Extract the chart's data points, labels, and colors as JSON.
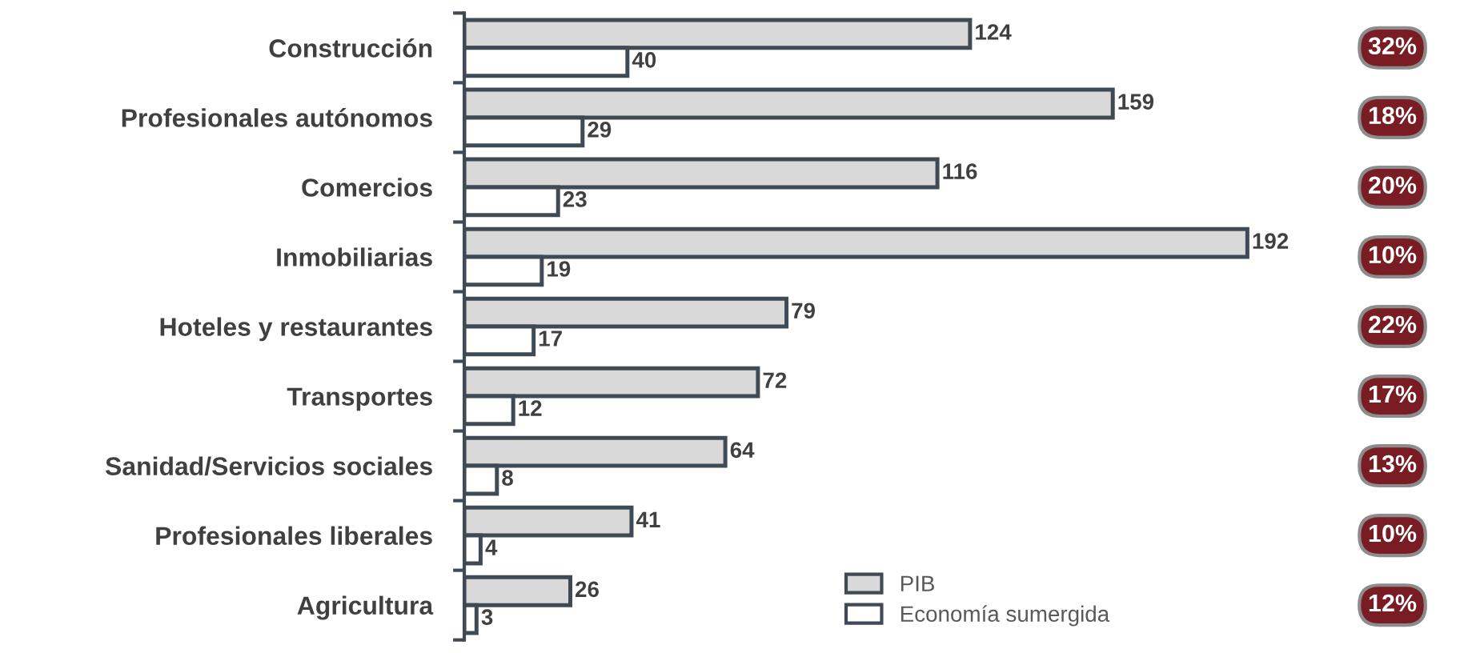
{
  "chart_data": {
    "type": "bar",
    "orientation": "horizontal",
    "categories": [
      "Construcción",
      "Profesionales autónomos",
      "Comercios",
      "Inmobiliarias",
      "Hoteles y restaurantes",
      "Transportes",
      "Sanidad/Servicios sociales",
      "Profesionales liberales",
      "Agricultura"
    ],
    "series": [
      {
        "name": "PIB",
        "color": "#d9d9d9",
        "values": [
          124,
          159,
          116,
          192,
          79,
          72,
          64,
          41,
          26
        ]
      },
      {
        "name": "Economía sumergida",
        "color": "#ffffff",
        "values": [
          40,
          29,
          23,
          19,
          17,
          12,
          8,
          4,
          3
        ]
      }
    ],
    "data_labels": true,
    "legend": "bottom",
    "grid": false,
    "annotations": [
      "32%",
      "18%",
      "20%",
      "10%",
      "22%",
      "17%",
      "13%",
      "10%",
      "12%"
    ]
  }
}
